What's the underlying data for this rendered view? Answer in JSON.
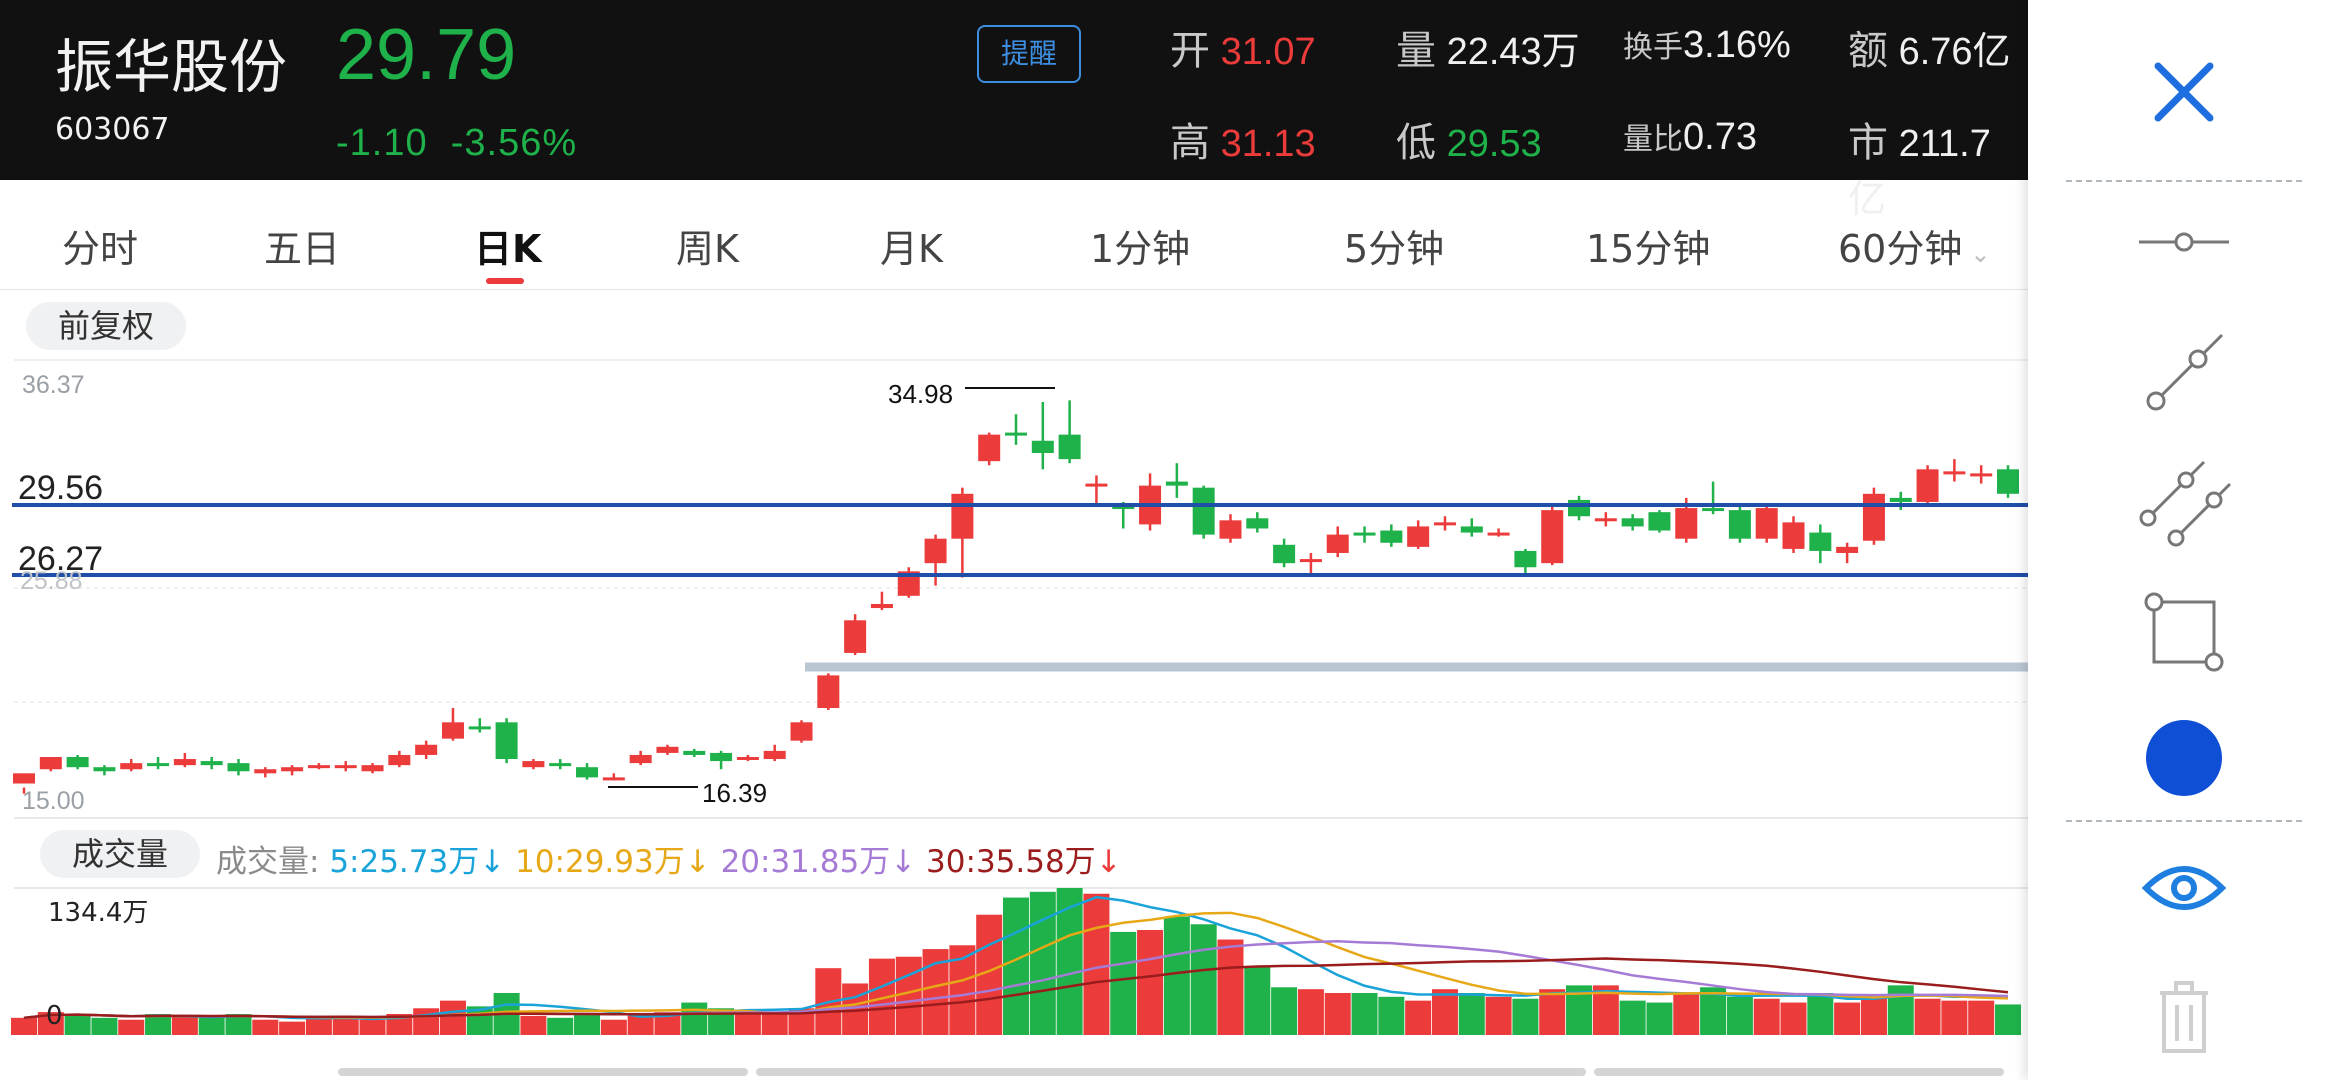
{
  "stock": {
    "name": "振华股份",
    "code": "603067",
    "price": "29.79",
    "change": "-1.10",
    "change_pct": "-3.56%",
    "remind_label": "提醒"
  },
  "stats": {
    "open_label": "开",
    "open": "31.07",
    "volume_label": "量",
    "volume": "22.43万",
    "turnover_label": "换手",
    "turnover": "3.16%",
    "amount_label": "额",
    "amount": "6.76亿",
    "high_label": "高",
    "high": "31.13",
    "low_label": "低",
    "low": "29.53",
    "vol_ratio_label": "量比",
    "vol_ratio": "0.73",
    "mcap_label": "市",
    "mcap": "211.7亿"
  },
  "tabs": [
    "分时",
    "五日",
    "日K",
    "周K",
    "月K",
    "1分钟",
    "5分钟",
    "15分钟",
    "60分钟"
  ],
  "active_tab": "日K",
  "adjust_label": "前复权",
  "kline": {
    "axis_top": "36.37",
    "axis_bottom": "15.00",
    "axis_mid_partial": "25.88",
    "hline1_label": "29.56",
    "hline2_label": "26.27",
    "high_marker": "34.98",
    "low_marker": "16.39",
    "up_color": "#ec3b3b",
    "down_color": "#1fb14a",
    "hline_color": "#1f4fa8"
  },
  "volume": {
    "label": "成交量",
    "legend_prefix": "成交量:",
    "ma5": "5:25.73万",
    "ma10": "10:29.93万",
    "ma20": "20:31.85万",
    "ma30": "30:35.58万",
    "arrow": "↓",
    "max_label": "134.4万",
    "zero_label": "0",
    "ma5_color": "#1aa3d9",
    "ma10_color": "#e6a817",
    "ma20_color": "#a67bd6",
    "ma30_color": "#9b1c1c"
  },
  "tools": {
    "close": "close-icon",
    "items": [
      "horizontal-line-tool-icon",
      "segment-tool-icon",
      "parallel-lines-tool-icon",
      "rectangle-tool-icon",
      "color-picker-icon",
      "visibility-eye-icon",
      "delete-trash-icon"
    ],
    "active_color": "#0f4fd6"
  }
}
